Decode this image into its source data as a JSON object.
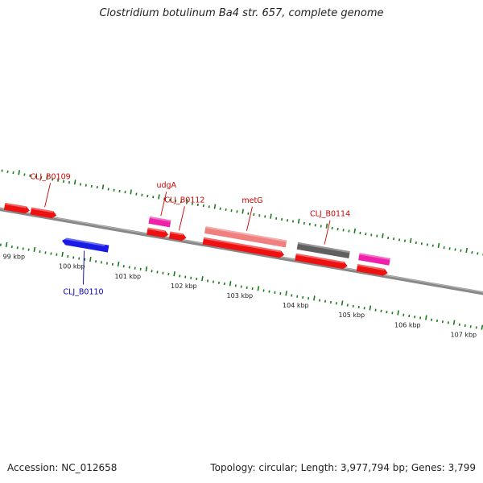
{
  "title": "Clostridium botulinum Ba4 str. 657, complete genome",
  "accession_text": "Accession: NC_012658",
  "summary_text": "Topology: circular; Length: 3,977,794 bp; Genes: 3,799",
  "colors": {
    "forward_cds": "#ee1111",
    "reverse_cds": "#1a1ae6",
    "rna": "#ee22aa",
    "pseudo": "#f08080",
    "other": "#606060",
    "backbone": "#888888",
    "ticks": "#1a7a1a",
    "label_forward": "#cc0000",
    "label_reverse": "#0000aa"
  },
  "scale": {
    "kbp_labels": [
      "99 kbp",
      "100 kbp",
      "101 kbp",
      "102 kbp",
      "103 kbp",
      "104 kbp",
      "105 kbp",
      "106 kbp",
      "107 kbp"
    ]
  },
  "features": [
    {
      "strand": "+",
      "kind": "cds",
      "start_kbp": 98.85,
      "end_kbp": 99.3,
      "label": ""
    },
    {
      "strand": "+",
      "kind": "cds",
      "start_kbp": 99.32,
      "end_kbp": 99.78,
      "label": "CLJ_B0109"
    },
    {
      "strand": "-",
      "kind": "cds",
      "start_kbp": 99.95,
      "end_kbp": 100.78,
      "label": "CLJ_B0110"
    },
    {
      "strand": "+",
      "kind": "rna",
      "start_kbp": 101.4,
      "end_kbp": 101.78,
      "label": "udgA"
    },
    {
      "strand": "+",
      "kind": "cds",
      "start_kbp": 101.4,
      "end_kbp": 101.78,
      "label": ""
    },
    {
      "strand": "+",
      "kind": "cds",
      "start_kbp": 101.8,
      "end_kbp": 102.1,
      "label": "CLJ_B0112"
    },
    {
      "strand": "+",
      "kind": "pseudo",
      "start_kbp": 102.4,
      "end_kbp": 103.85,
      "label": "metG"
    },
    {
      "strand": "+",
      "kind": "cds",
      "start_kbp": 102.4,
      "end_kbp": 103.85,
      "label": ""
    },
    {
      "strand": "+",
      "kind": "other",
      "start_kbp": 104.05,
      "end_kbp": 104.98,
      "label": "CLJ_B0114"
    },
    {
      "strand": "+",
      "kind": "cds",
      "start_kbp": 104.05,
      "end_kbp": 104.98,
      "label": ""
    },
    {
      "strand": "+",
      "kind": "rna",
      "start_kbp": 105.15,
      "end_kbp": 105.7,
      "label": ""
    },
    {
      "strand": "+",
      "kind": "cds",
      "start_kbp": 105.15,
      "end_kbp": 105.7,
      "label": ""
    }
  ]
}
